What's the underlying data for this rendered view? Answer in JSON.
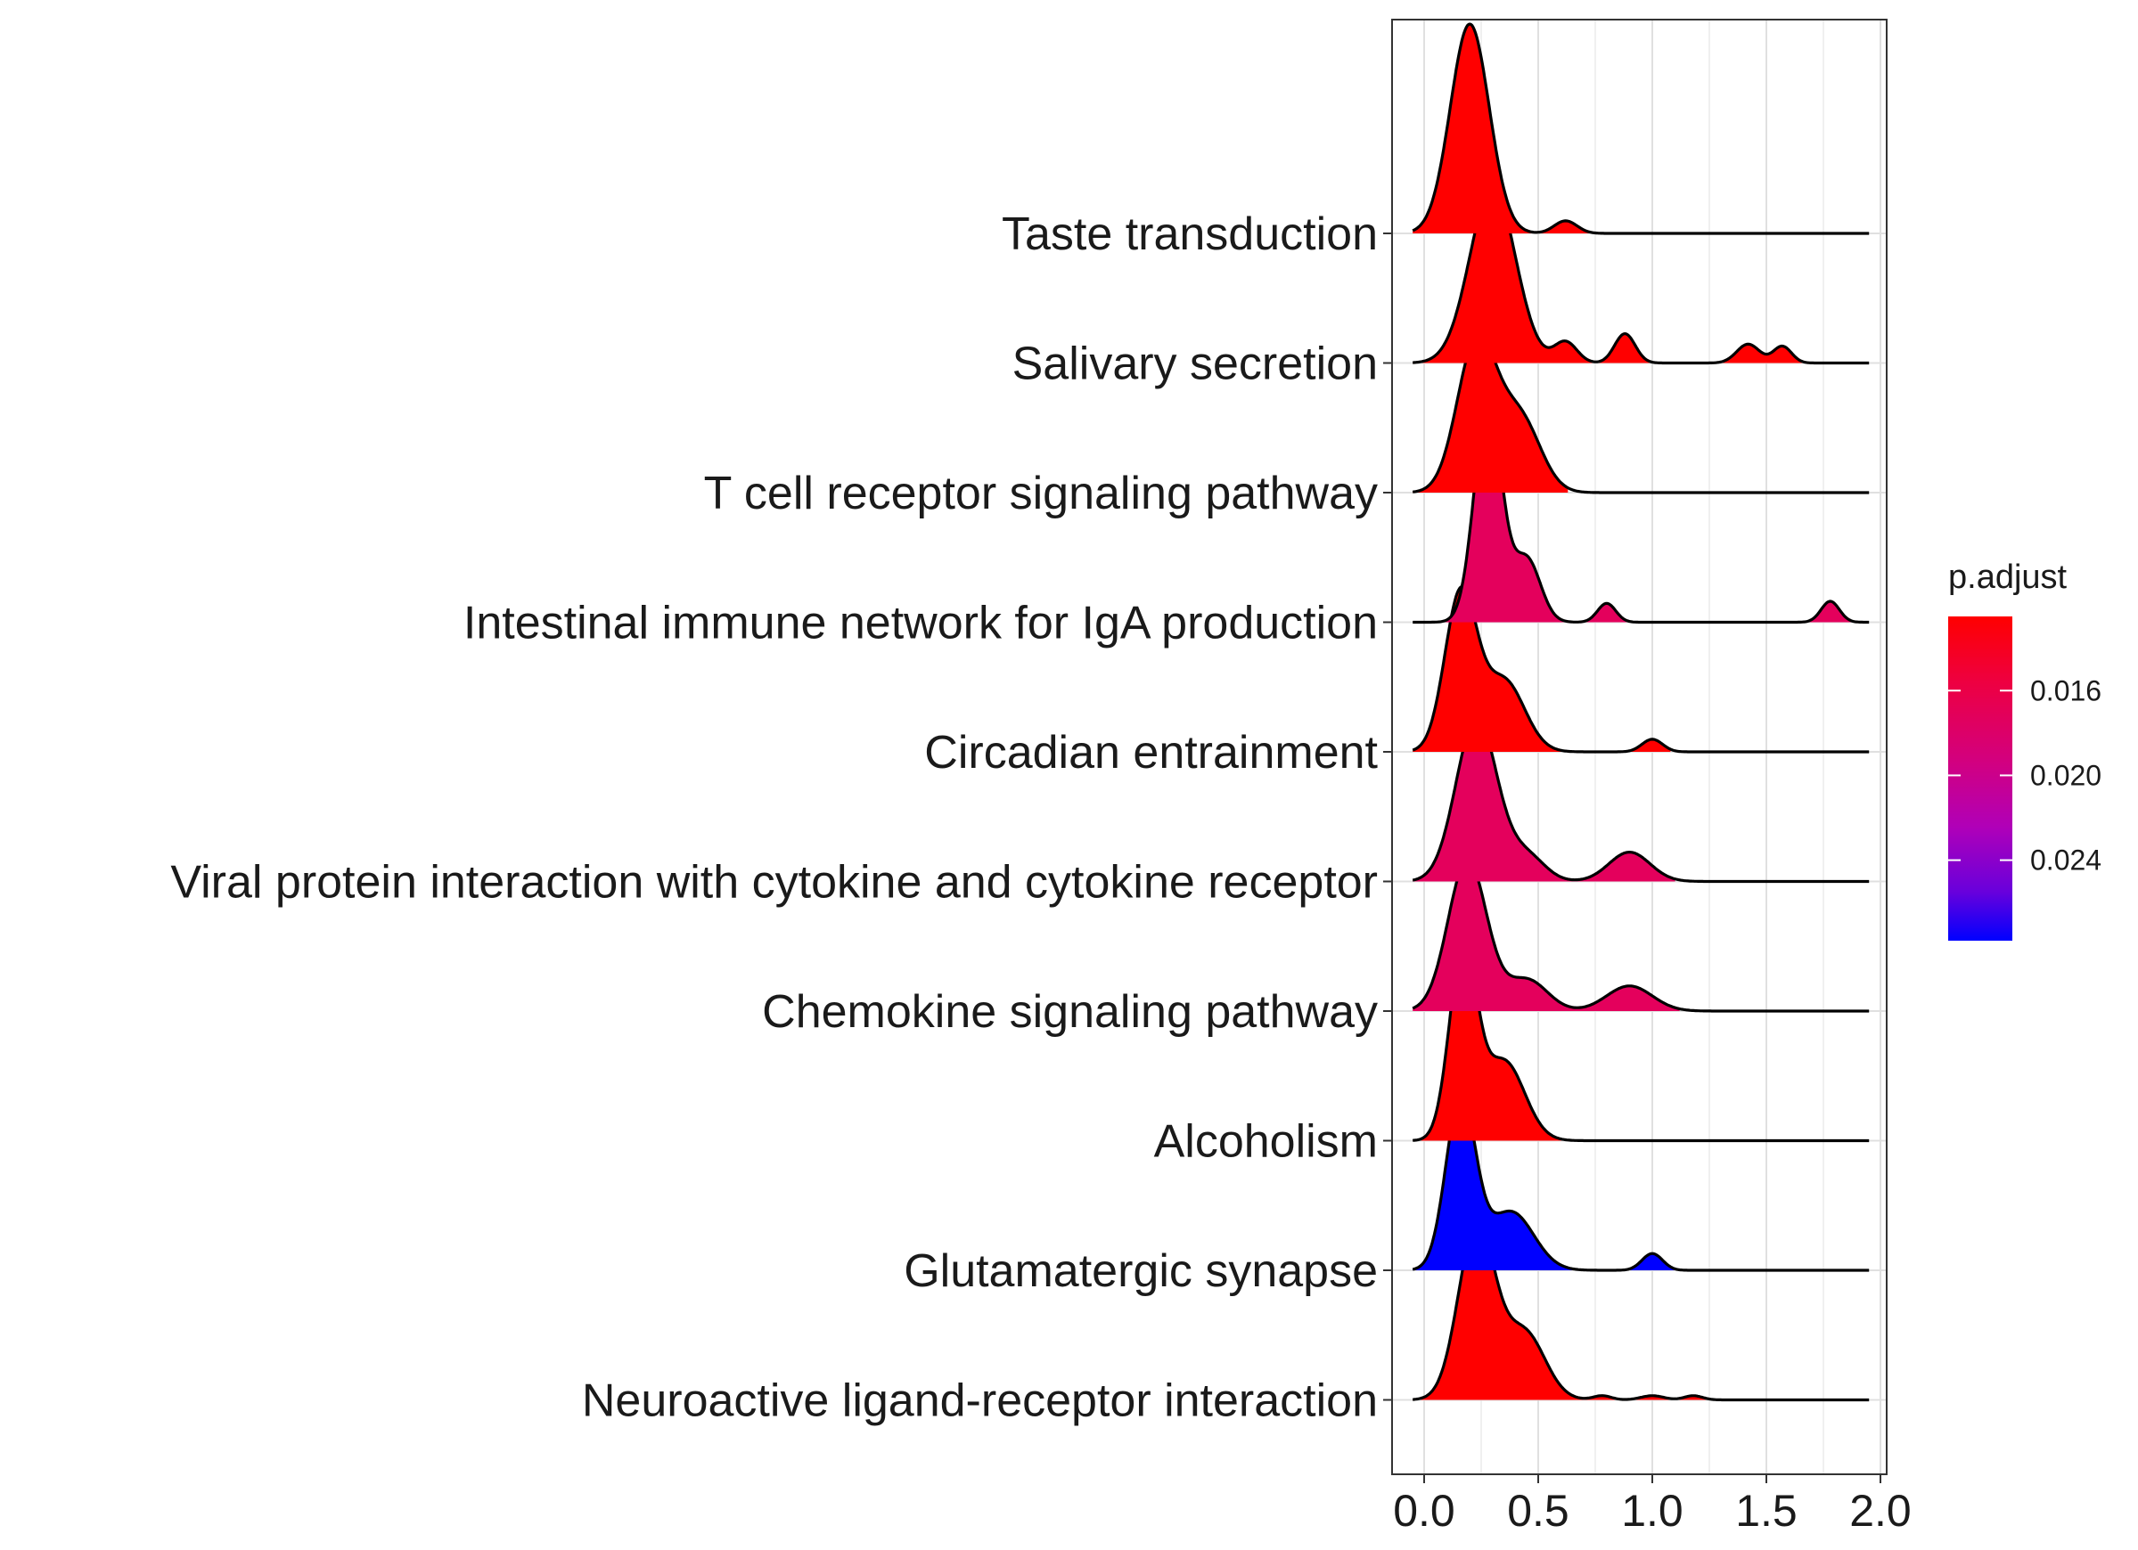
{
  "chart_data": {
    "type": "ridgeline",
    "xlabel": "",
    "ylabel": "",
    "xlim": [
      -0.05,
      2.0
    ],
    "x_ticks": [
      "0.0",
      "0.5",
      "1.0",
      "1.5",
      "2.0"
    ],
    "x_tick_values": [
      0.0,
      0.5,
      1.0,
      1.5,
      2.0
    ],
    "x_range": [
      -0.05,
      1.95
    ],
    "grid": true,
    "legend": {
      "title": "p.adjust",
      "position": "right",
      "ticks": [
        "0.016",
        "0.020",
        "0.024"
      ],
      "tick_values": [
        0.016,
        0.02,
        0.024
      ],
      "range": [
        0.0125,
        0.0278
      ],
      "color_low": "#ff0000",
      "color_mid": "#b000b8",
      "color_high": "#0000ff"
    },
    "categories": [
      "Taste transduction",
      "Salivary secretion",
      "T cell receptor signaling pathway",
      "Intestinal immune network for IgA production",
      "Circadian entrainment",
      "Viral protein interaction with cytokine and cytokine receptor",
      "Chemokine signaling pathway",
      "Alcoholism",
      "Glutamatergic synapse",
      "Neuroactive ligand-receptor interaction"
    ],
    "series": [
      {
        "name": "Taste transduction",
        "p_adjust": 0.0128,
        "color": "#ff0000",
        "peaks": [
          [
            0.2,
            0.085,
            1.0
          ],
          [
            0.62,
            0.05,
            0.06
          ]
        ],
        "fill_end": 0.74
      },
      {
        "name": "Salivary secretion",
        "p_adjust": 0.0128,
        "color": "#ff0000",
        "peaks": [
          [
            0.3,
            0.1,
            0.84
          ],
          [
            0.62,
            0.05,
            0.1
          ],
          [
            0.88,
            0.045,
            0.14
          ],
          [
            1.42,
            0.05,
            0.09
          ],
          [
            1.57,
            0.04,
            0.08
          ]
        ],
        "fill_end": 1.68
      },
      {
        "name": "T cell receptor signaling pathway",
        "p_adjust": 0.0128,
        "color": "#ff0000",
        "peaks": [
          [
            0.23,
            0.085,
            0.72
          ],
          [
            0.42,
            0.09,
            0.35
          ]
        ],
        "fill_end": 0.63
      },
      {
        "name": "Intestinal immune network for IgA production",
        "p_adjust": 0.018,
        "color": "#e4005c",
        "peaks": [
          [
            0.28,
            0.06,
            1.05
          ],
          [
            0.45,
            0.06,
            0.3
          ],
          [
            0.8,
            0.04,
            0.09
          ],
          [
            1.78,
            0.04,
            0.1
          ]
        ],
        "fill_end": 1.93
      },
      {
        "name": "Circadian entrainment",
        "p_adjust": 0.0128,
        "color": "#ff0000",
        "peaks": [
          [
            0.16,
            0.07,
            0.75
          ],
          [
            0.35,
            0.09,
            0.34
          ],
          [
            1.0,
            0.045,
            0.06
          ]
        ],
        "fill_end": 1.08
      },
      {
        "name": "Viral protein interaction with cytokine and cytokine receptor",
        "p_adjust": 0.018,
        "color": "#e4005c",
        "peaks": [
          [
            0.23,
            0.09,
            0.78
          ],
          [
            0.45,
            0.08,
            0.12
          ],
          [
            0.9,
            0.09,
            0.14
          ]
        ],
        "fill_end": 1.1
      },
      {
        "name": "Chemokine signaling pathway",
        "p_adjust": 0.018,
        "color": "#e4005c",
        "peaks": [
          [
            0.19,
            0.085,
            0.72
          ],
          [
            0.45,
            0.09,
            0.15
          ],
          [
            0.9,
            0.1,
            0.12
          ]
        ],
        "fill_end": 1.12
      },
      {
        "name": "Alcoholism",
        "p_adjust": 0.0128,
        "color": "#ff0000",
        "peaks": [
          [
            0.17,
            0.06,
            0.9
          ],
          [
            0.35,
            0.09,
            0.38
          ]
        ],
        "fill_end": 0.65
      },
      {
        "name": "Glutamatergic synapse",
        "p_adjust": 0.0275,
        "color": "#0000ff",
        "peaks": [
          [
            0.16,
            0.065,
            0.82
          ],
          [
            0.38,
            0.1,
            0.28
          ],
          [
            1.0,
            0.045,
            0.08
          ]
        ],
        "fill_end": 1.1
      },
      {
        "name": "Neuroactive ligand-receptor interaction",
        "p_adjust": 0.0128,
        "color": "#ff0000",
        "peaks": [
          [
            0.23,
            0.08,
            0.83
          ],
          [
            0.44,
            0.09,
            0.32
          ],
          [
            0.78,
            0.04,
            0.02
          ],
          [
            1.0,
            0.05,
            0.02
          ],
          [
            1.18,
            0.04,
            0.02
          ]
        ],
        "fill_end": 1.25
      }
    ]
  }
}
